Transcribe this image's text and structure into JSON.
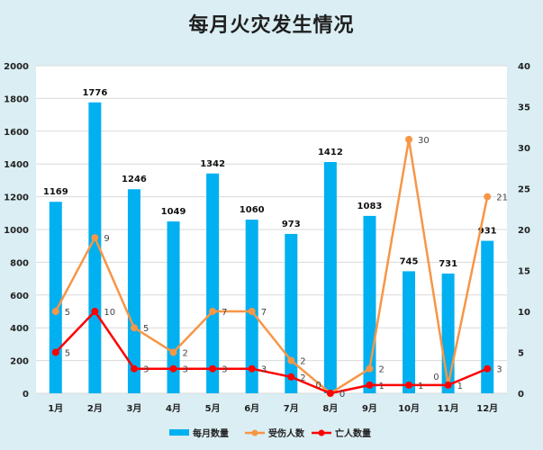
{
  "chart_data": {
    "type": "bar+line",
    "title": "每月火灾发生情况",
    "categories": [
      "1月",
      "2月",
      "3月",
      "4月",
      "5月",
      "6月",
      "7月",
      "8月",
      "9月",
      "10月",
      "11月",
      "12月"
    ],
    "series": [
      {
        "name": "每月数量",
        "type": "bar",
        "axis": "left",
        "color": "#00b0f0",
        "values": [
          1169,
          1776,
          1246,
          1049,
          1342,
          1060,
          973,
          1412,
          1083,
          745,
          731,
          931
        ]
      },
      {
        "name": "受伤人数",
        "type": "line-stacked",
        "axis": "right",
        "color": "#f79646",
        "values": [
          5,
          9,
          5,
          2,
          7,
          7,
          2,
          0,
          2,
          30,
          0,
          21
        ]
      },
      {
        "name": "亡人数量",
        "type": "line",
        "axis": "right",
        "color": "#ff0000",
        "values": [
          5,
          10,
          3,
          3,
          3,
          3,
          2,
          0,
          1,
          1,
          1,
          3
        ]
      }
    ],
    "left_axis": {
      "min": 0,
      "max": 2000,
      "step": 200
    },
    "right_axis": {
      "min": 0,
      "max": 40,
      "step": 5
    },
    "grid": true,
    "legend": "bottom"
  }
}
